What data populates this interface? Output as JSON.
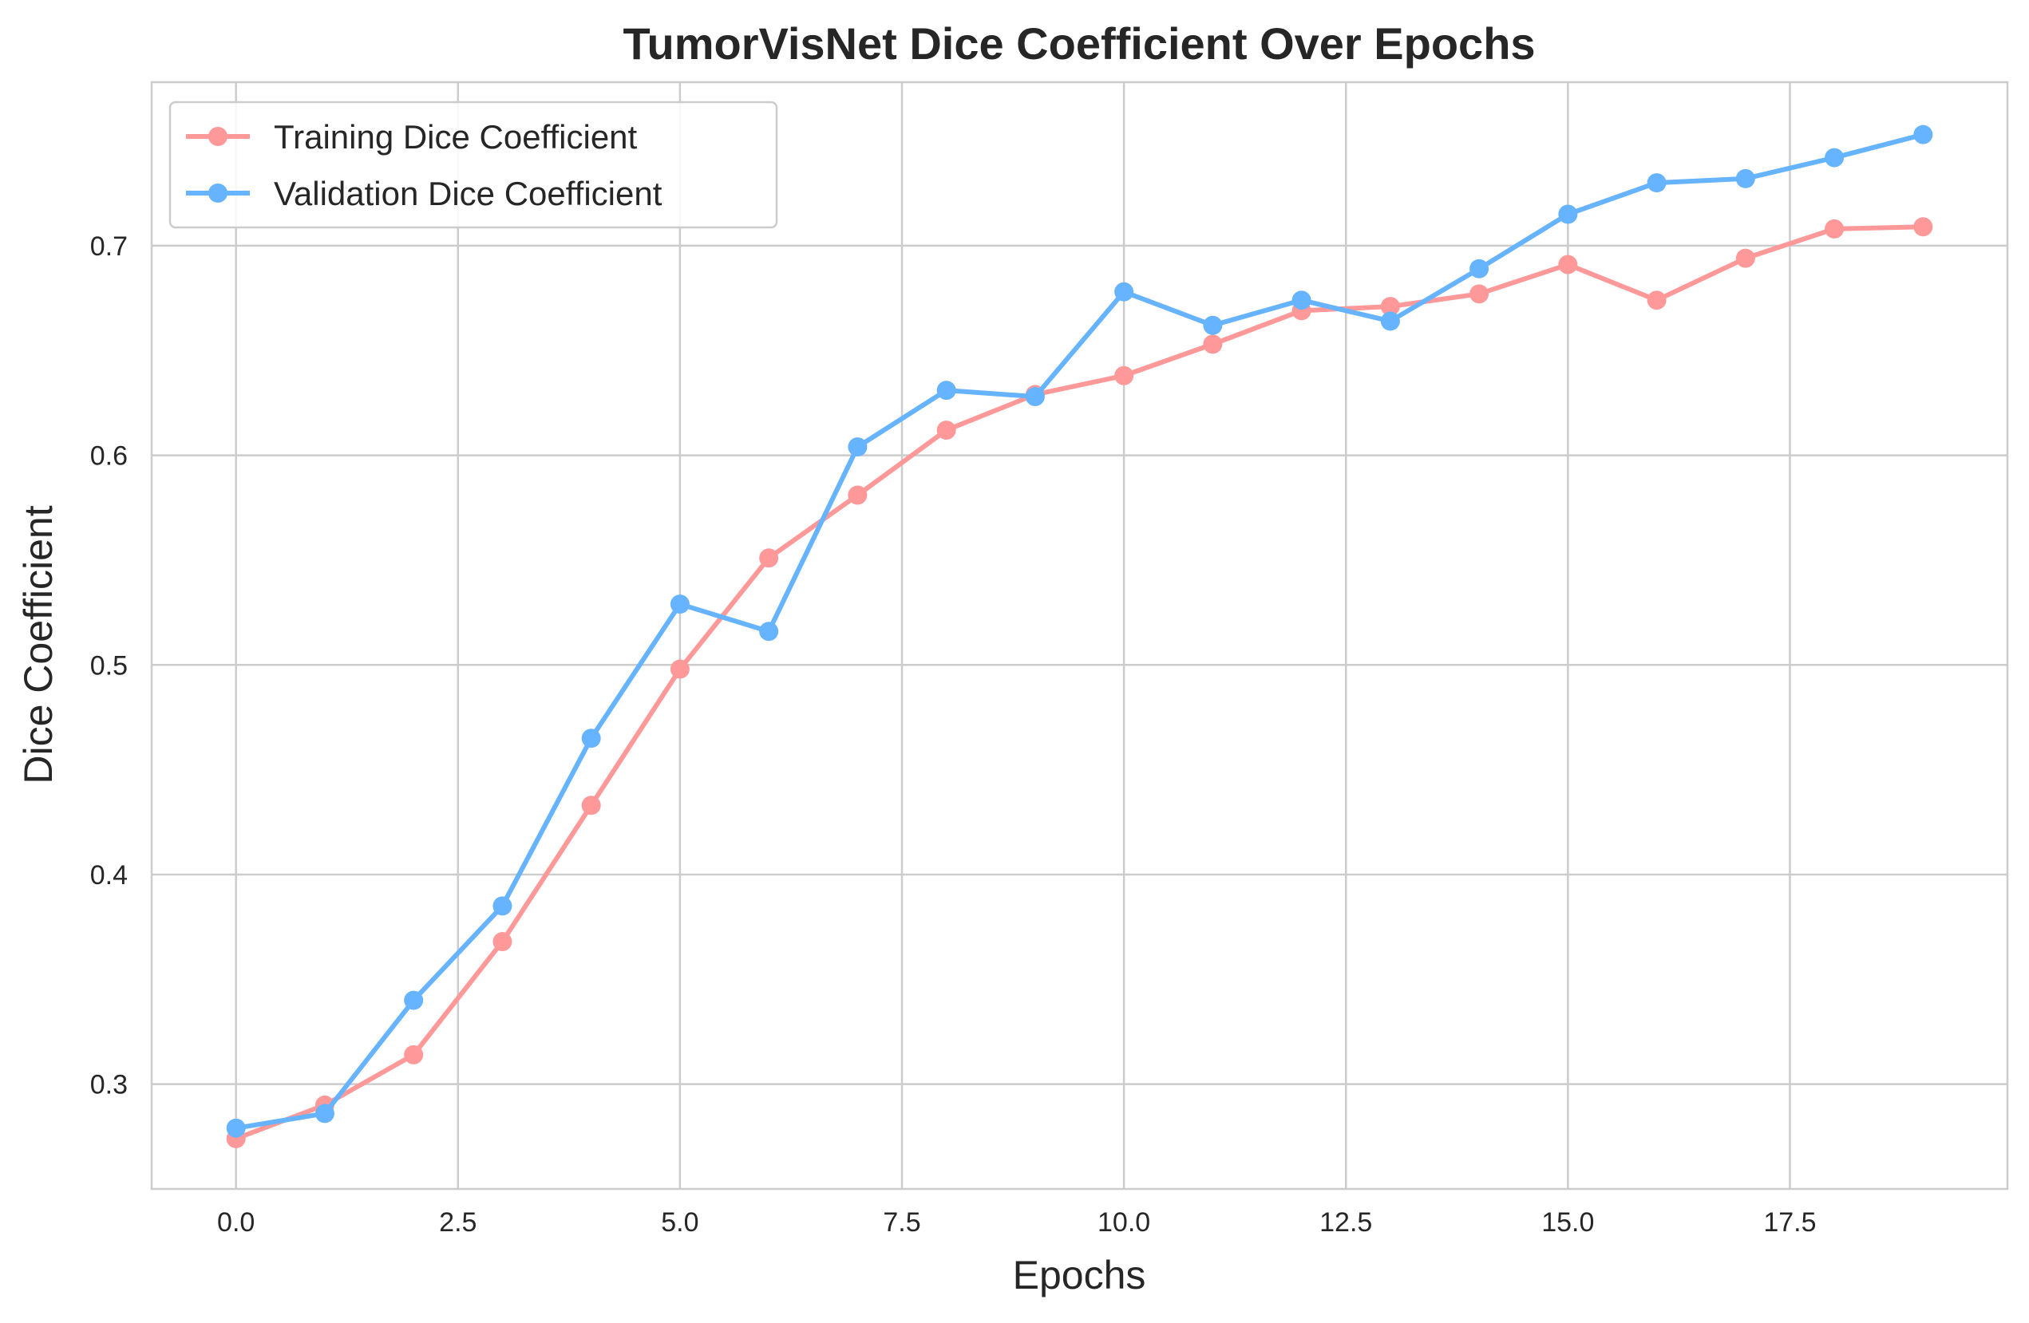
{
  "chart_data": {
    "type": "line",
    "title": "TumorVisNet Dice Coefficient Over Epochs",
    "xlabel": "Epochs",
    "ylabel": "Dice Coefficient",
    "x": [
      0,
      1,
      2,
      3,
      4,
      5,
      6,
      7,
      8,
      9,
      10,
      11,
      12,
      13,
      14,
      15,
      16,
      17,
      18,
      19
    ],
    "xlim": [
      -0.95,
      19.95
    ],
    "ylim": [
      0.25,
      0.778
    ],
    "xticks": [
      0.0,
      2.5,
      5.0,
      7.5,
      10.0,
      12.5,
      15.0,
      17.5
    ],
    "xtick_labels": [
      "0.0",
      "2.5",
      "5.0",
      "7.5",
      "10.0",
      "12.5",
      "15.0",
      "17.5"
    ],
    "yticks": [
      0.3,
      0.4,
      0.5,
      0.6,
      0.7
    ],
    "ytick_labels": [
      "0.3",
      "0.4",
      "0.5",
      "0.6",
      "0.7"
    ],
    "grid": true,
    "legend_position": "top-left",
    "series": [
      {
        "name": "Training Dice Coefficient",
        "color": "#ff9999",
        "values": [
          0.274,
          0.29,
          0.314,
          0.368,
          0.433,
          0.498,
          0.551,
          0.581,
          0.612,
          0.629,
          0.638,
          0.653,
          0.669,
          0.671,
          0.677,
          0.691,
          0.674,
          0.694,
          0.708,
          0.709
        ]
      },
      {
        "name": "Validation Dice Coefficient",
        "color": "#66b3ff",
        "values": [
          0.279,
          0.286,
          0.34,
          0.385,
          0.465,
          0.529,
          0.516,
          0.604,
          0.631,
          0.628,
          0.678,
          0.662,
          0.674,
          0.664,
          0.689,
          0.715,
          0.73,
          0.732,
          0.742,
          0.753
        ]
      }
    ]
  }
}
